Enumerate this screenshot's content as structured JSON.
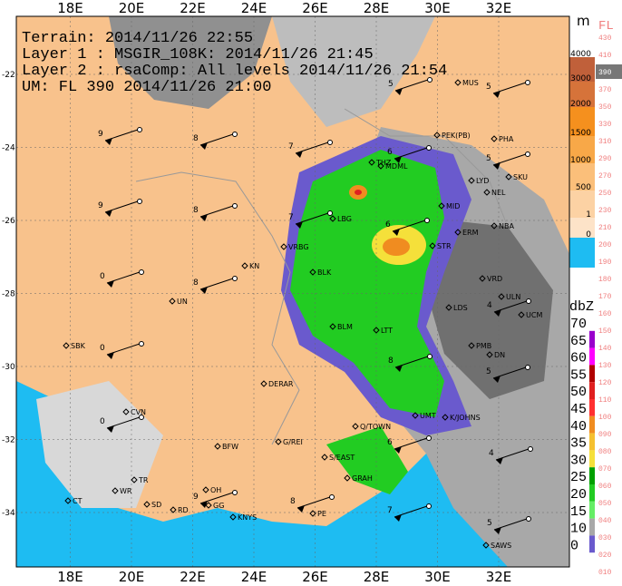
{
  "map": {
    "lon_labels": [
      "18E",
      "20E",
      "22E",
      "24E",
      "26E",
      "28E",
      "30E",
      "32E"
    ],
    "lat_labels": [
      "-22",
      "-24",
      "-26",
      "-28",
      "-30",
      "-32",
      "-34"
    ],
    "header": [
      "Terrain: 2014/11/26 22:55",
      "Layer 1 : MSGIR_108K: 2014/11/26 21:45",
      "Layer 2 : rsaComp: All levels 2014/11/26 21:54",
      "UM: FL 390 2014/11/26 21:00"
    ],
    "terrain_legend": {
      "title": "m",
      "labels": [
        "4000",
        "3000",
        "2000",
        "1500",
        "1000",
        "500",
        "1",
        "0"
      ]
    },
    "fl_legend": {
      "title": "FL",
      "labels": [
        "430",
        "410",
        "390",
        "370",
        "350",
        "330",
        "310",
        "290",
        "270",
        "250",
        "230",
        "210",
        "200",
        "190",
        "180",
        "170",
        "160",
        "150",
        "140",
        "130",
        "120",
        "110",
        "100",
        "090",
        "080",
        "070",
        "060",
        "050",
        "040",
        "030",
        "020",
        "010"
      ],
      "highlight": "390"
    },
    "dbz_legend": {
      "title": "dbZ",
      "labels": [
        "70",
        "65",
        "60",
        "55",
        "50",
        "45",
        "40",
        "35",
        "30",
        "25",
        "20",
        "15",
        "10",
        "0"
      ]
    },
    "stations": [
      "MUS",
      "PHA",
      "PEK(PB)",
      "SKU",
      "NEL",
      "LYD",
      "MID",
      "ERM",
      "NBA",
      "STR",
      "VRD",
      "ULN",
      "UCM",
      "LDS",
      "PMB",
      "DN",
      "UN",
      "KN",
      "VRBG",
      "BLK",
      "SBK",
      "CVN",
      "DERAR",
      "BFW",
      "G/REI",
      "TR",
      "CT",
      "WR",
      "SD",
      "RD",
      "OH",
      "GG",
      "KNYS",
      "PE",
      "GRAH",
      "S/EAST",
      "Q/TOWN",
      "UMT",
      "K/JOHNS",
      "SAWS",
      "THZ",
      "MDML",
      "LBG",
      "BLM",
      "LTT"
    ],
    "wind_speeds": [
      "5",
      "5",
      "9",
      "8",
      "7",
      "6",
      "5",
      "9",
      "8",
      "7",
      "6",
      "0",
      "8",
      "4",
      "0",
      "8",
      "5",
      "0",
      "6",
      "4",
      "9",
      "8",
      "7",
      "5"
    ]
  }
}
